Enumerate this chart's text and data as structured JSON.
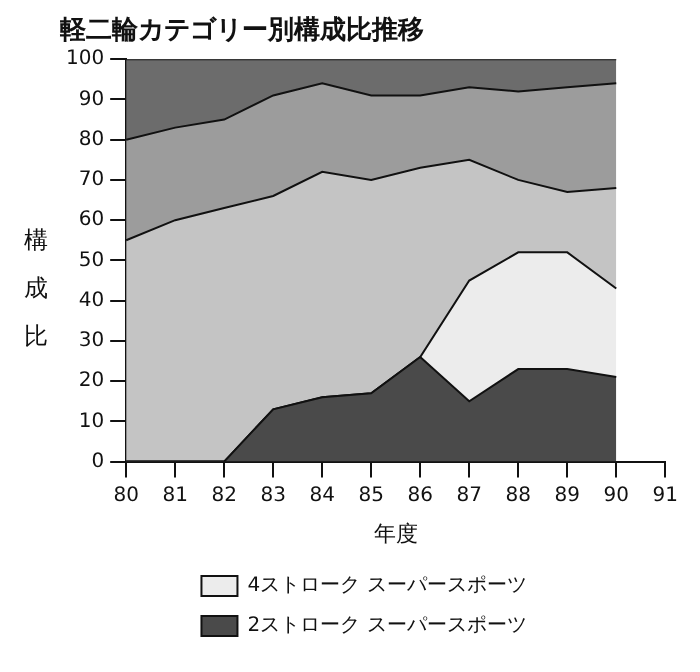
{
  "chart_data": {
    "type": "area",
    "title": "軽二輪カテゴリー別構成比推移",
    "xlabel": "年度",
    "ylabel": "構成比",
    "stacked": true,
    "categories": [
      "80",
      "81",
      "82",
      "83",
      "84",
      "85",
      "86",
      "87",
      "88",
      "89",
      "90",
      "91"
    ],
    "ylim": [
      0,
      100
    ],
    "yticks": [
      0,
      10,
      20,
      30,
      40,
      50,
      60,
      70,
      80,
      90,
      100
    ],
    "legend": "bottom",
    "series": [
      {
        "name": "2ストローク スーパースポーツ",
        "color": "#4a4a4a",
        "values": [
          0,
          0,
          0,
          13,
          16,
          17,
          26,
          15,
          23,
          23,
          21,
          null
        ]
      },
      {
        "name": "4ストローク スーパースポーツ",
        "color": "#ececec",
        "values": [
          0,
          0,
          0,
          0,
          0,
          0,
          0,
          30,
          29,
          29,
          22,
          null
        ]
      },
      {
        "color": "#c4c4c4",
        "values": [
          55,
          60,
          63,
          53,
          56,
          53,
          47,
          30,
          18,
          15,
          25,
          null
        ]
      },
      {
        "color": "#9c9c9c",
        "values": [
          25,
          23,
          22,
          25,
          22,
          21,
          18,
          18,
          22,
          26,
          26,
          null
        ]
      },
      {
        "color": "#6c6c6c",
        "values": [
          20,
          17,
          15,
          9,
          6,
          9,
          9,
          7,
          8,
          7,
          6,
          null
        ]
      }
    ]
  }
}
